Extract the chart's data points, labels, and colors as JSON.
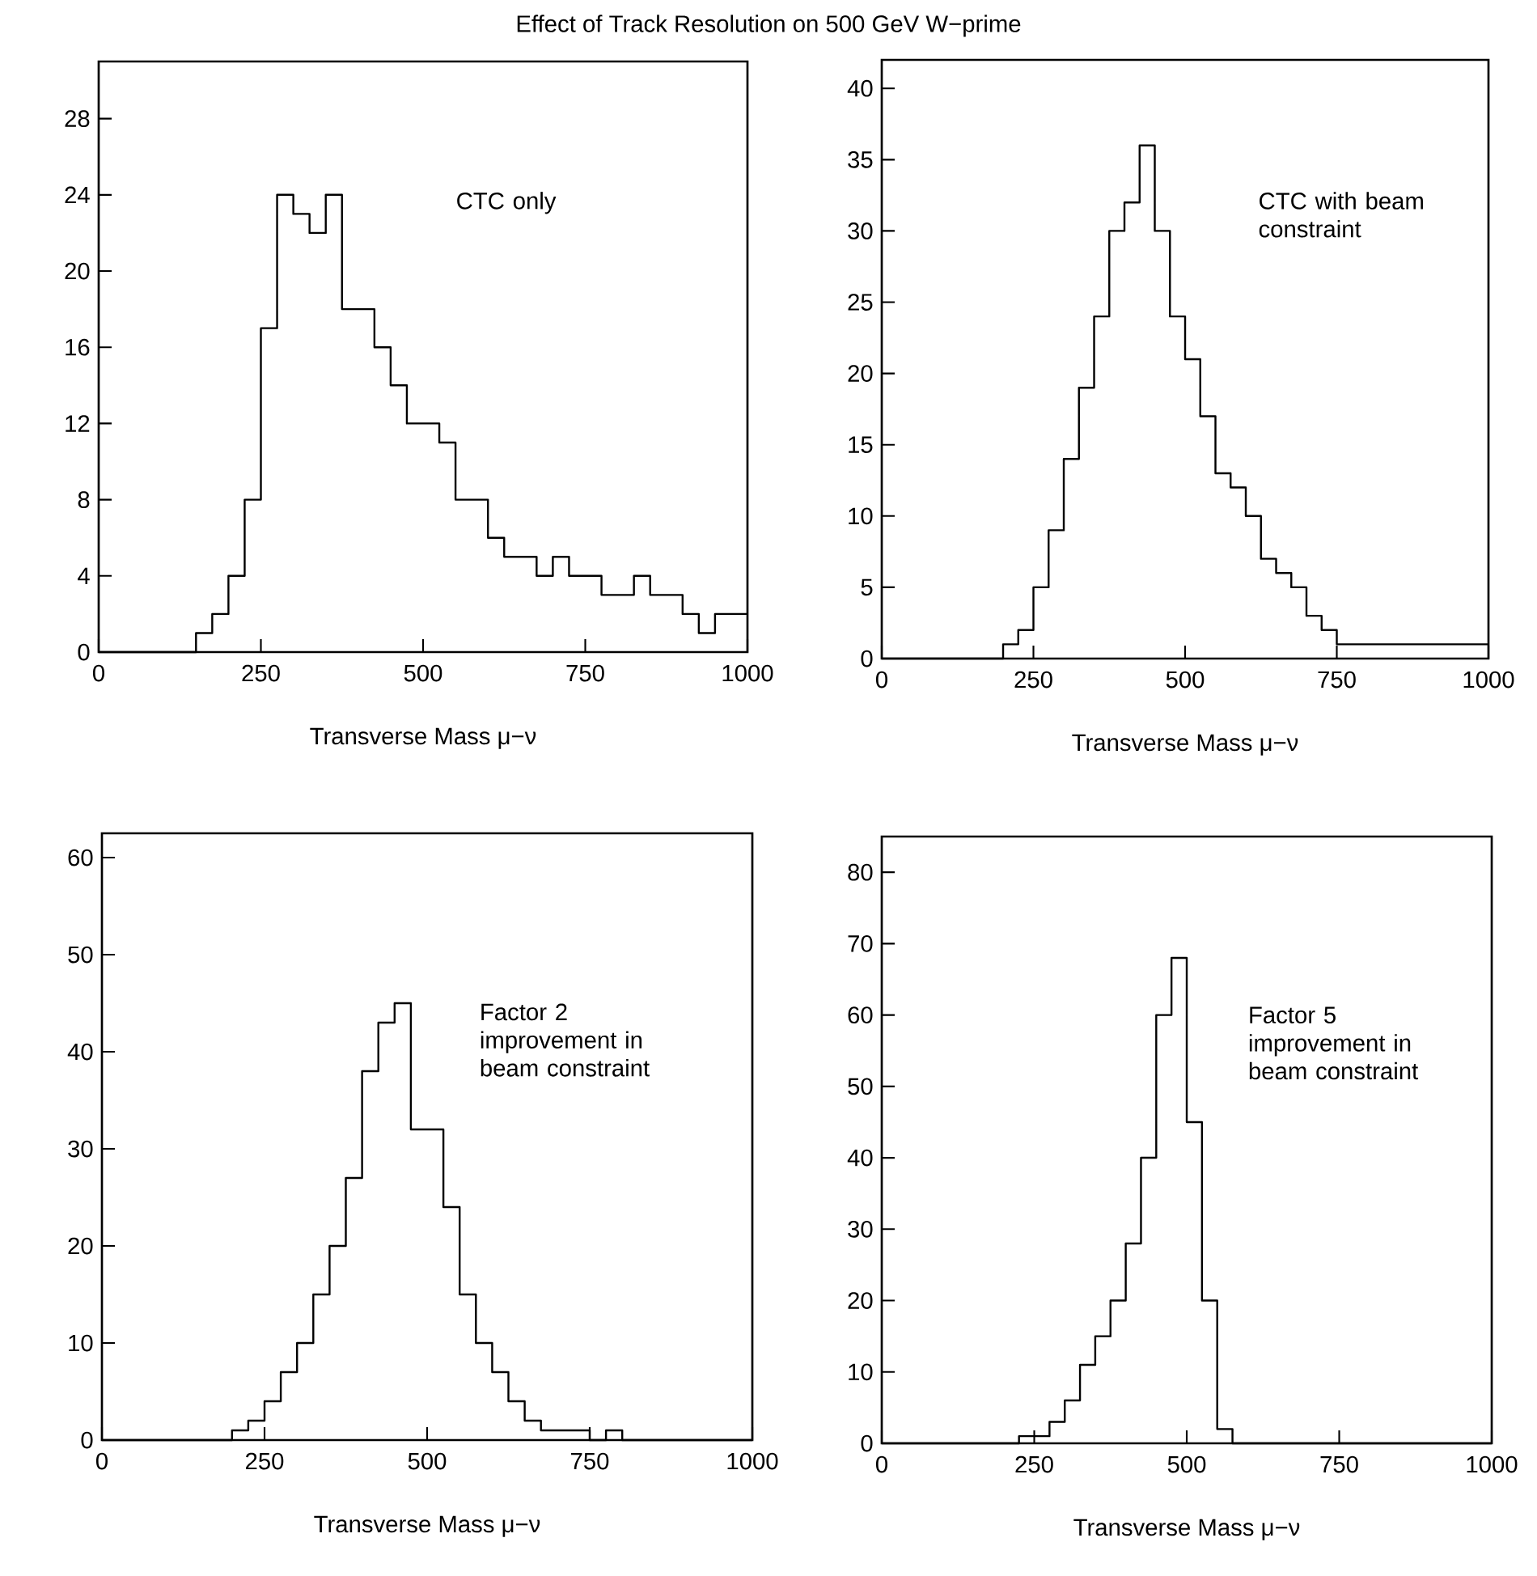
{
  "chart_data": [
    {
      "type": "histogram",
      "title": "Effect of Track Resolution on 500 GeV W−prime",
      "xlabel": "Transverse Mass μ−ν",
      "annotations": [
        "CTC only"
      ],
      "color": "#000000",
      "bins": [
        0,
        25,
        50,
        75,
        100,
        125,
        150,
        175,
        200,
        225,
        250,
        275,
        300,
        325,
        350,
        375,
        400,
        425,
        450,
        475,
        500,
        525,
        550,
        575,
        600,
        625,
        650,
        675,
        700,
        725,
        750,
        775,
        800,
        825,
        850,
        875,
        900,
        925,
        950,
        975,
        1000
      ],
      "values": [
        0,
        0,
        0,
        0,
        0,
        0,
        1,
        2,
        4,
        8,
        17,
        24,
        23,
        22,
        24,
        18,
        18,
        16,
        14,
        12,
        12,
        11,
        8,
        8,
        6,
        5,
        5,
        4,
        5,
        4,
        4,
        3,
        3,
        4,
        3,
        3,
        2,
        1,
        2,
        2
      ],
      "xlim": [
        0,
        1000
      ],
      "ylim": [
        0,
        31
      ],
      "xticks": [
        0,
        250,
        500,
        750,
        1000
      ],
      "yticks": [
        0,
        4,
        8,
        12,
        16,
        20,
        24,
        28
      ]
    },
    {
      "type": "histogram",
      "xlabel": "Transverse Mass μ−ν",
      "annotations": [
        "CTC with beam constraint"
      ],
      "color": "#000000",
      "bins": [
        0,
        25,
        50,
        75,
        100,
        125,
        150,
        175,
        200,
        225,
        250,
        275,
        300,
        325,
        350,
        375,
        400,
        425,
        450,
        475,
        500,
        525,
        550,
        575,
        600,
        625,
        650,
        675,
        700,
        725,
        750,
        775,
        800,
        825,
        850,
        875,
        900,
        925,
        950,
        975,
        1000
      ],
      "values": [
        0,
        0,
        0,
        0,
        0,
        0,
        0,
        0,
        1,
        2,
        5,
        9,
        14,
        19,
        24,
        30,
        32,
        36,
        30,
        24,
        21,
        17,
        13,
        12,
        10,
        7,
        6,
        5,
        3,
        2,
        1,
        1,
        1,
        1,
        1,
        1,
        1,
        1,
        1,
        1
      ],
      "xlim": [
        0,
        1000
      ],
      "ylim": [
        0,
        42
      ],
      "xticks": [
        0,
        250,
        500,
        750,
        1000
      ],
      "yticks": [
        0,
        5,
        10,
        15,
        20,
        25,
        30,
        35,
        40
      ]
    },
    {
      "type": "histogram",
      "xlabel": "Transverse Mass μ−ν",
      "annotations": [
        "Factor 2 improvement in beam constraint"
      ],
      "color": "#000000",
      "bins": [
        0,
        25,
        50,
        75,
        100,
        125,
        150,
        175,
        200,
        225,
        250,
        275,
        300,
        325,
        350,
        375,
        400,
        425,
        450,
        475,
        500,
        525,
        550,
        575,
        600,
        625,
        650,
        675,
        700,
        725,
        750,
        775,
        800,
        825,
        850,
        875,
        900,
        925,
        950,
        975,
        1000
      ],
      "values": [
        0,
        0,
        0,
        0,
        0,
        0,
        0,
        0,
        1,
        2,
        4,
        7,
        10,
        15,
        20,
        27,
        38,
        43,
        45,
        32,
        32,
        24,
        15,
        10,
        7,
        4,
        2,
        1,
        1,
        1,
        0,
        1,
        0,
        0,
        0,
        0,
        0,
        0,
        0,
        0
      ],
      "xlim": [
        0,
        1000
      ],
      "ylim": [
        0,
        62.5
      ],
      "xticks": [
        0,
        250,
        500,
        750,
        1000
      ],
      "yticks": [
        0,
        10,
        20,
        30,
        40,
        50,
        60
      ]
    },
    {
      "type": "histogram",
      "xlabel": "Transverse Mass μ−ν",
      "annotations": [
        "Factor 5 improvement in beam constraint"
      ],
      "color": "#000000",
      "bins": [
        0,
        25,
        50,
        75,
        100,
        125,
        150,
        175,
        200,
        225,
        250,
        275,
        300,
        325,
        350,
        375,
        400,
        425,
        450,
        475,
        500,
        525,
        550,
        575,
        600,
        625,
        650,
        675,
        700,
        725,
        750,
        775,
        800,
        825,
        850,
        875,
        900,
        925,
        950,
        975,
        1000
      ],
      "values": [
        0,
        0,
        0,
        0,
        0,
        0,
        0,
        0,
        0,
        1,
        1,
        3,
        6,
        11,
        15,
        20,
        28,
        40,
        60,
        68,
        45,
        20,
        2,
        0,
        0,
        0,
        0,
        0,
        0,
        0,
        0,
        0,
        0,
        0,
        0,
        0,
        0,
        0,
        0,
        0
      ],
      "xlim": [
        0,
        1000
      ],
      "ylim": [
        0,
        85
      ],
      "xticks": [
        0,
        250,
        500,
        750,
        1000
      ],
      "yticks": [
        0,
        10,
        20,
        30,
        40,
        50,
        60,
        70,
        80
      ]
    }
  ]
}
